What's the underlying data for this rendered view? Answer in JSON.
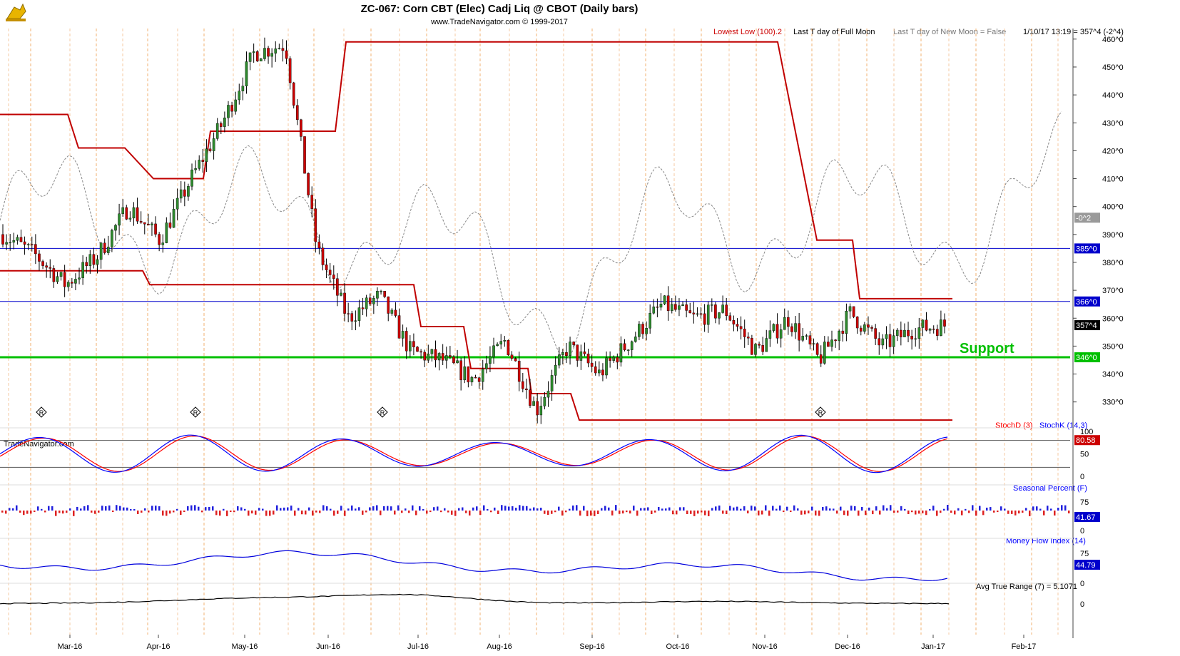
{
  "header": {
    "title": "ZC-067:  Corn CBT (Elec) Cadj Liq @ CBOT  (Daily bars)",
    "subtitle": "www.TradeNavigator.com © 1999-2017",
    "lowest_low": "Lowest Low (100).2",
    "full_moon": "Last T day of Full Moon",
    "new_moon": "Last T day of New Moon = False",
    "last_quote": "1/10/17 13:19 = 357^4 (-2^4)",
    "watermark": "TradeNavigator.com"
  },
  "colors": {
    "up": "#2e8b2e",
    "down": "#cc0000",
    "lowest_low": "#c00000",
    "support": "#00c000",
    "level_line": "#0000cc",
    "seasonal": "#888888",
    "stoch_d": "#ff0000",
    "stoch_k": "#0000ff",
    "mfi": "#0000dd",
    "atr": "#000000"
  },
  "icons": {
    "logo": "bull-logo-icon",
    "r_marker": "r-diamond-icon",
    "moon_dot": "moon-dot-icon"
  },
  "chart_data": [
    {
      "type": "candlestick",
      "panel": "price",
      "title": "ZC-067:  Corn CBT (Elec) Cadj Liq @ CBOT  (Daily bars)",
      "x_ticks": [
        "Mar-16",
        "Apr-16",
        "May-16",
        "Jun-16",
        "Jul-16",
        "Aug-16",
        "Sep-16",
        "Oct-16",
        "Nov-16",
        "Dec-16",
        "Jan-17",
        "Feb-17"
      ],
      "y_ticks": [
        "460^0",
        "450^0",
        "440^0",
        "430^0",
        "420^0",
        "410^0",
        "400^0",
        "390^0",
        "380^0",
        "370^0",
        "360^0",
        "350^0",
        "340^0",
        "330^0"
      ],
      "ylim": [
        322,
        462
      ],
      "close_path": [
        {
          "x": "Feb-16",
          "y": 390
        },
        {
          "x": "Mar-16",
          "y": 383
        },
        {
          "x": "Apr-16",
          "y": 372
        },
        {
          "x": "Apr-16",
          "y": 382
        },
        {
          "x": "May-16",
          "y": 400
        },
        {
          "x": "May-16",
          "y": 388
        },
        {
          "x": "May-16",
          "y": 410
        },
        {
          "x": "Jun-16",
          "y": 430
        },
        {
          "x": "Jun-16",
          "y": 455
        },
        {
          "x": "Jun-16",
          "y": 458
        },
        {
          "x": "Jul-16",
          "y": 385
        },
        {
          "x": "Jul-16",
          "y": 360
        },
        {
          "x": "Jul-16",
          "y": 368
        },
        {
          "x": "Aug-16",
          "y": 348
        },
        {
          "x": "Aug-16",
          "y": 345
        },
        {
          "x": "Aug-16",
          "y": 338
        },
        {
          "x": "Aug-16",
          "y": 352
        },
        {
          "x": "Sep-16",
          "y": 327
        },
        {
          "x": "Sep-16",
          "y": 350
        },
        {
          "x": "Sep-16",
          "y": 340
        },
        {
          "x": "Oct-16",
          "y": 352
        },
        {
          "x": "Oct-16",
          "y": 365
        },
        {
          "x": "Oct-16",
          "y": 360
        },
        {
          "x": "Nov-16",
          "y": 363
        },
        {
          "x": "Nov-16",
          "y": 348
        },
        {
          "x": "Nov-16",
          "y": 360
        },
        {
          "x": "Dec-16",
          "y": 345
        },
        {
          "x": "Dec-16",
          "y": 362
        },
        {
          "x": "Dec-16",
          "y": 350
        },
        {
          "x": "Jan-17",
          "y": 356
        },
        {
          "x": "Jan-17",
          "y": 357.5
        }
      ],
      "lowest_low_steps": [
        {
          "from": "Feb-16",
          "to": "Apr-16",
          "value": 433
        },
        {
          "from": "Apr-16",
          "to": "Apr-16",
          "value": 421
        },
        {
          "from": "Apr-16",
          "to": "Apr-16",
          "value": 410
        },
        {
          "from": "May-16",
          "to": "Jun-16",
          "value": 427
        },
        {
          "from": "Jun-16",
          "to": "Nov-16",
          "value": 459
        },
        {
          "from": "Nov-16",
          "to": "Dec-16",
          "value": 388
        },
        {
          "from": "Dec-16",
          "to": "Jan-17",
          "value": 367
        }
      ],
      "levels": [
        {
          "label": "385^0",
          "value": 385
        },
        {
          "label": "366^0",
          "value": 366
        },
        {
          "label": "346^0",
          "value": 346,
          "annotation": "Support"
        }
      ],
      "last_price_label": "357^4",
      "seasonal_label": "-0^2",
      "annotations": [
        "Support"
      ],
      "r_markers": [
        "Mar-16",
        "May-16",
        "Jul-16",
        "Dec-16"
      ]
    },
    {
      "type": "line",
      "panel": "stochastic",
      "series": [
        {
          "name": "StochD (3)"
        },
        {
          "name": "StochK (14,3)"
        }
      ],
      "y_ticks": [
        "100",
        "50",
        "0"
      ],
      "ylim": [
        0,
        100
      ],
      "reference_lines": [
        80,
        20
      ],
      "last_value_label": "80.58"
    },
    {
      "type": "bar",
      "panel": "seasonal",
      "series": [
        {
          "name": "Seasonal Percent (F)"
        }
      ],
      "y_ticks": [
        "75",
        "0"
      ],
      "last_value_label": "41.67"
    },
    {
      "type": "line",
      "panel": "mfi",
      "series": [
        {
          "name": "Money Flow Index (14)"
        }
      ],
      "y_ticks": [
        "75",
        "0"
      ],
      "last_value_label": "44.79"
    },
    {
      "type": "line",
      "panel": "atr",
      "series": [
        {
          "name": "Avg True Range (7) = 5.1071"
        }
      ],
      "y_ticks": [
        "0"
      ]
    }
  ]
}
